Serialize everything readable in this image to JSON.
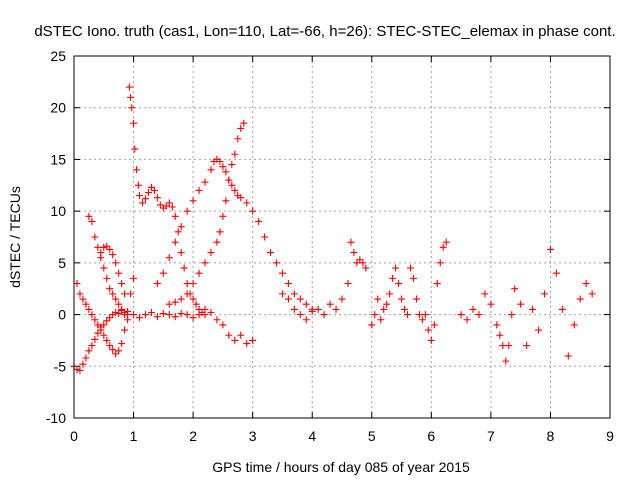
{
  "chart_data": {
    "type": "scatter",
    "title": "dSTEC Iono. truth (cas1, Lon=110, Lat=-66, h=26): STEC-STEC_elemax in phase cont.",
    "xlabel": "GPS time / hours of day 085 of year 2015",
    "ylabel": "dSTEC  / TECUs",
    "xlim": [
      0,
      9
    ],
    "ylim": [
      -10,
      25
    ],
    "xticks": [
      0,
      1,
      2,
      3,
      4,
      5,
      6,
      7,
      8,
      9
    ],
    "yticks": [
      -10,
      -5,
      0,
      5,
      10,
      15,
      20,
      25
    ],
    "grid": true,
    "marker": "+",
    "colors": {
      "series": "#ff0000"
    },
    "series": [
      {
        "x": [
          0.0,
          0.05,
          0.1,
          0.15,
          0.2,
          0.25,
          0.3,
          0.35,
          0.4,
          0.45,
          0.5,
          0.55,
          0.6,
          0.65,
          0.7,
          0.75,
          0.8,
          0.85,
          0.9
        ],
        "y": [
          -5.0,
          -5.3,
          -5.4,
          -4.8,
          -4.2,
          -3.5,
          -3.0,
          -2.4,
          -1.8,
          -1.2,
          -1.0,
          -0.6,
          -0.3,
          0.0,
          0.2,
          0.1,
          0.4,
          0.2,
          0.3
        ]
      },
      {
        "x": [
          0.05,
          0.1,
          0.15,
          0.2,
          0.25,
          0.3,
          0.35,
          0.4,
          0.45,
          0.5,
          0.55,
          0.6,
          0.65,
          0.7,
          0.75,
          0.8,
          0.85,
          0.9,
          0.95,
          1.0
        ],
        "y": [
          3.0,
          2.0,
          1.5,
          1.0,
          0.5,
          0.0,
          -0.5,
          -1.0,
          -1.5,
          -2.0,
          -2.5,
          -3.0,
          -3.4,
          -3.8,
          -3.5,
          -2.8,
          -1.5,
          0.0,
          2.0,
          3.5
        ]
      },
      {
        "x": [
          0.25,
          0.3,
          0.35,
          0.4,
          0.45,
          0.5,
          0.55,
          0.6,
          0.65,
          0.7,
          0.75,
          0.8,
          0.85,
          0.9
        ],
        "y": [
          9.5,
          9.0,
          7.5,
          6.5,
          5.5,
          4.5,
          3.5,
          2.5,
          2.0,
          1.5,
          1.0,
          0.5,
          0.0,
          -0.5
        ]
      },
      {
        "x": [
          0.45,
          0.5,
          0.55,
          0.6,
          0.65,
          0.7,
          0.75,
          0.8,
          0.85
        ],
        "y": [
          6.0,
          6.5,
          6.6,
          6.3,
          5.8,
          5.0,
          4.0,
          3.0,
          2.0
        ]
      },
      {
        "x": [
          0.93,
          0.95,
          0.97,
          1.0,
          1.02,
          1.05,
          1.08,
          1.1,
          1.15,
          1.2,
          1.25,
          1.3,
          1.35,
          1.4,
          1.45,
          1.5,
          1.55,
          1.6,
          1.65,
          1.7,
          1.75,
          1.8,
          1.85,
          1.9,
          1.95,
          2.0,
          2.05,
          2.1,
          2.15,
          2.2
        ],
        "y": [
          22.0,
          21.0,
          20.0,
          18.5,
          16.0,
          14.0,
          12.5,
          11.5,
          10.8,
          11.2,
          11.8,
          12.3,
          12.0,
          11.3,
          10.6,
          10.3,
          10.5,
          10.8,
          10.4,
          9.5,
          8.0,
          6.0,
          4.5,
          3.0,
          2.0,
          1.5,
          1.0,
          0.5,
          0.2,
          0.0
        ]
      },
      {
        "x": [
          1.4,
          1.5,
          1.6,
          1.7,
          1.8,
          1.9,
          2.0,
          2.1,
          2.2,
          2.3,
          2.35,
          2.4,
          2.45,
          2.5,
          2.55,
          2.6,
          2.65,
          2.7,
          2.75,
          2.8,
          2.9,
          3.0,
          3.1,
          3.2,
          3.3,
          3.4,
          3.5,
          3.6,
          3.7,
          3.8,
          3.9,
          4.0
        ],
        "y": [
          3.0,
          4.0,
          5.5,
          7.0,
          8.5,
          10.0,
          11.0,
          12.0,
          12.8,
          14.0,
          14.8,
          15.0,
          14.8,
          14.3,
          13.8,
          13.0,
          12.5,
          12.0,
          11.5,
          11.3,
          10.8,
          10.0,
          9.0,
          7.5,
          6.0,
          5.0,
          4.0,
          3.0,
          2.0,
          1.5,
          1.0,
          0.5
        ]
      },
      {
        "x": [
          1.6,
          1.7,
          1.8,
          1.9,
          2.0,
          2.1,
          2.2,
          2.3,
          2.4,
          2.45,
          2.5,
          2.55,
          2.6,
          2.65,
          2.7,
          2.75,
          2.8,
          2.85
        ],
        "y": [
          1.0,
          1.2,
          1.5,
          2.0,
          3.0,
          4.0,
          5.0,
          6.0,
          7.0,
          8.0,
          9.5,
          11.0,
          13.0,
          14.5,
          15.5,
          17.0,
          18.0,
          18.5
        ]
      },
      {
        "x": [
          1.0,
          1.1,
          1.2,
          1.3,
          1.4,
          1.5,
          1.6,
          1.7,
          1.8,
          1.9,
          2.0,
          2.1,
          2.2,
          2.3,
          2.4,
          2.5,
          2.6,
          2.7,
          2.8,
          2.9,
          3.0
        ],
        "y": [
          0.0,
          -0.3,
          0.0,
          0.2,
          -0.2,
          0.1,
          0.0,
          -0.2,
          0.1,
          0.0,
          -0.3,
          0.0,
          0.5,
          0.2,
          -0.5,
          -1.0,
          -2.0,
          -2.5,
          -2.0,
          -2.8,
          -2.5
        ]
      },
      {
        "x": [
          3.5,
          3.6,
          3.7,
          3.8,
          3.9,
          4.0,
          4.1,
          4.2,
          4.3,
          4.4,
          4.5,
          4.6,
          4.65,
          4.7,
          4.75,
          4.8,
          4.85,
          4.9
        ],
        "y": [
          2.0,
          1.5,
          0.5,
          0.0,
          -0.5,
          0.3,
          0.5,
          0.0,
          1.0,
          0.5,
          1.5,
          3.0,
          7.0,
          6.0,
          5.0,
          5.3,
          5.0,
          4.5
        ]
      },
      {
        "x": [
          5.0,
          5.05,
          5.1,
          5.15,
          5.2,
          5.25,
          5.3,
          5.35,
          5.4,
          5.45,
          5.5,
          5.55,
          5.6,
          5.65,
          5.7,
          5.75,
          5.8,
          5.85,
          5.9,
          5.95,
          6.0,
          6.05,
          6.1,
          6.15,
          6.2,
          6.25
        ],
        "y": [
          -1.0,
          0.0,
          1.5,
          -0.5,
          0.5,
          1.0,
          2.0,
          3.5,
          4.5,
          3.0,
          1.5,
          0.5,
          0.0,
          4.5,
          3.5,
          1.5,
          0.0,
          -0.5,
          0.0,
          -1.5,
          -2.5,
          -1.0,
          3.0,
          5.0,
          6.5,
          7.0
        ]
      },
      {
        "x": [
          6.5,
          6.6,
          6.7,
          6.8,
          6.9,
          7.0,
          7.1,
          7.15,
          7.2,
          7.25,
          7.3,
          7.35,
          7.4,
          7.5,
          7.6,
          7.7,
          7.8,
          7.9,
          8.0,
          8.1,
          8.2,
          8.3,
          8.4,
          8.5,
          8.6,
          8.7
        ],
        "y": [
          0.0,
          -0.5,
          0.5,
          0.0,
          2.0,
          1.0,
          -1.0,
          -2.0,
          -3.0,
          -4.5,
          -3.0,
          0.0,
          2.5,
          1.0,
          -3.0,
          0.5,
          -1.5,
          2.0,
          6.3,
          4.0,
          0.5,
          -4.0,
          -1.0,
          1.5,
          3.0,
          2.0
        ]
      }
    ]
  }
}
